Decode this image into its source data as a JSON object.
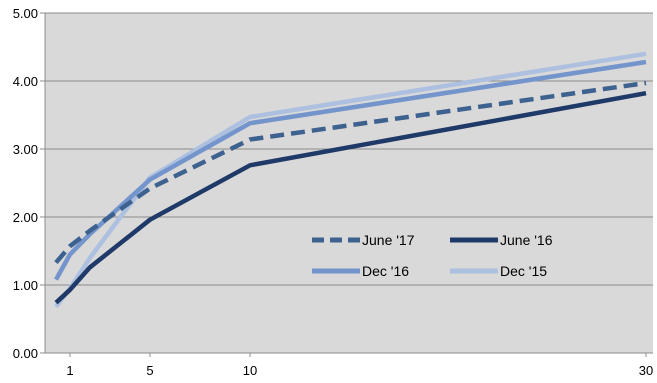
{
  "chart_data": {
    "type": "line",
    "title": "",
    "xlabel": "",
    "ylabel": "",
    "x_tick_labels": [
      "1",
      "5",
      "10",
      "30"
    ],
    "xlim": [
      0,
      30
    ],
    "ylim": [
      0,
      5
    ],
    "y_tick_labels": [
      "0.00",
      "1.00",
      "2.00",
      "3.00",
      "4.00",
      "5.00"
    ],
    "y_ticks": [
      0,
      1,
      2,
      3,
      4,
      5
    ],
    "grid": "horizontal",
    "legend_position": "center-right",
    "background_color": "#d9d9d9",
    "series": [
      {
        "name": "June '17",
        "color": "#3e6290",
        "dash": "dashed",
        "x": [
          0,
          1,
          2,
          5,
          10,
          30
        ],
        "y": [
          1.33,
          1.57,
          1.8,
          2.42,
          3.14,
          3.97
        ]
      },
      {
        "name": "June '16",
        "color": "#1f3a68",
        "dash": "solid",
        "x": [
          0,
          1,
          2,
          5,
          10,
          30
        ],
        "y": [
          0.74,
          0.93,
          1.26,
          1.96,
          2.76,
          3.82
        ]
      },
      {
        "name": "Dec '16",
        "color": "#7494cc",
        "dash": "solid",
        "x": [
          0,
          1,
          2,
          5,
          10,
          30
        ],
        "y": [
          1.08,
          1.45,
          1.75,
          2.55,
          3.38,
          4.28
        ]
      },
      {
        "name": "Dec '15",
        "color": "#adc0e0",
        "dash": "solid",
        "x": [
          0,
          1,
          2,
          5,
          10,
          30
        ],
        "y": [
          0.68,
          0.95,
          1.4,
          2.58,
          3.47,
          4.4
        ]
      }
    ]
  }
}
